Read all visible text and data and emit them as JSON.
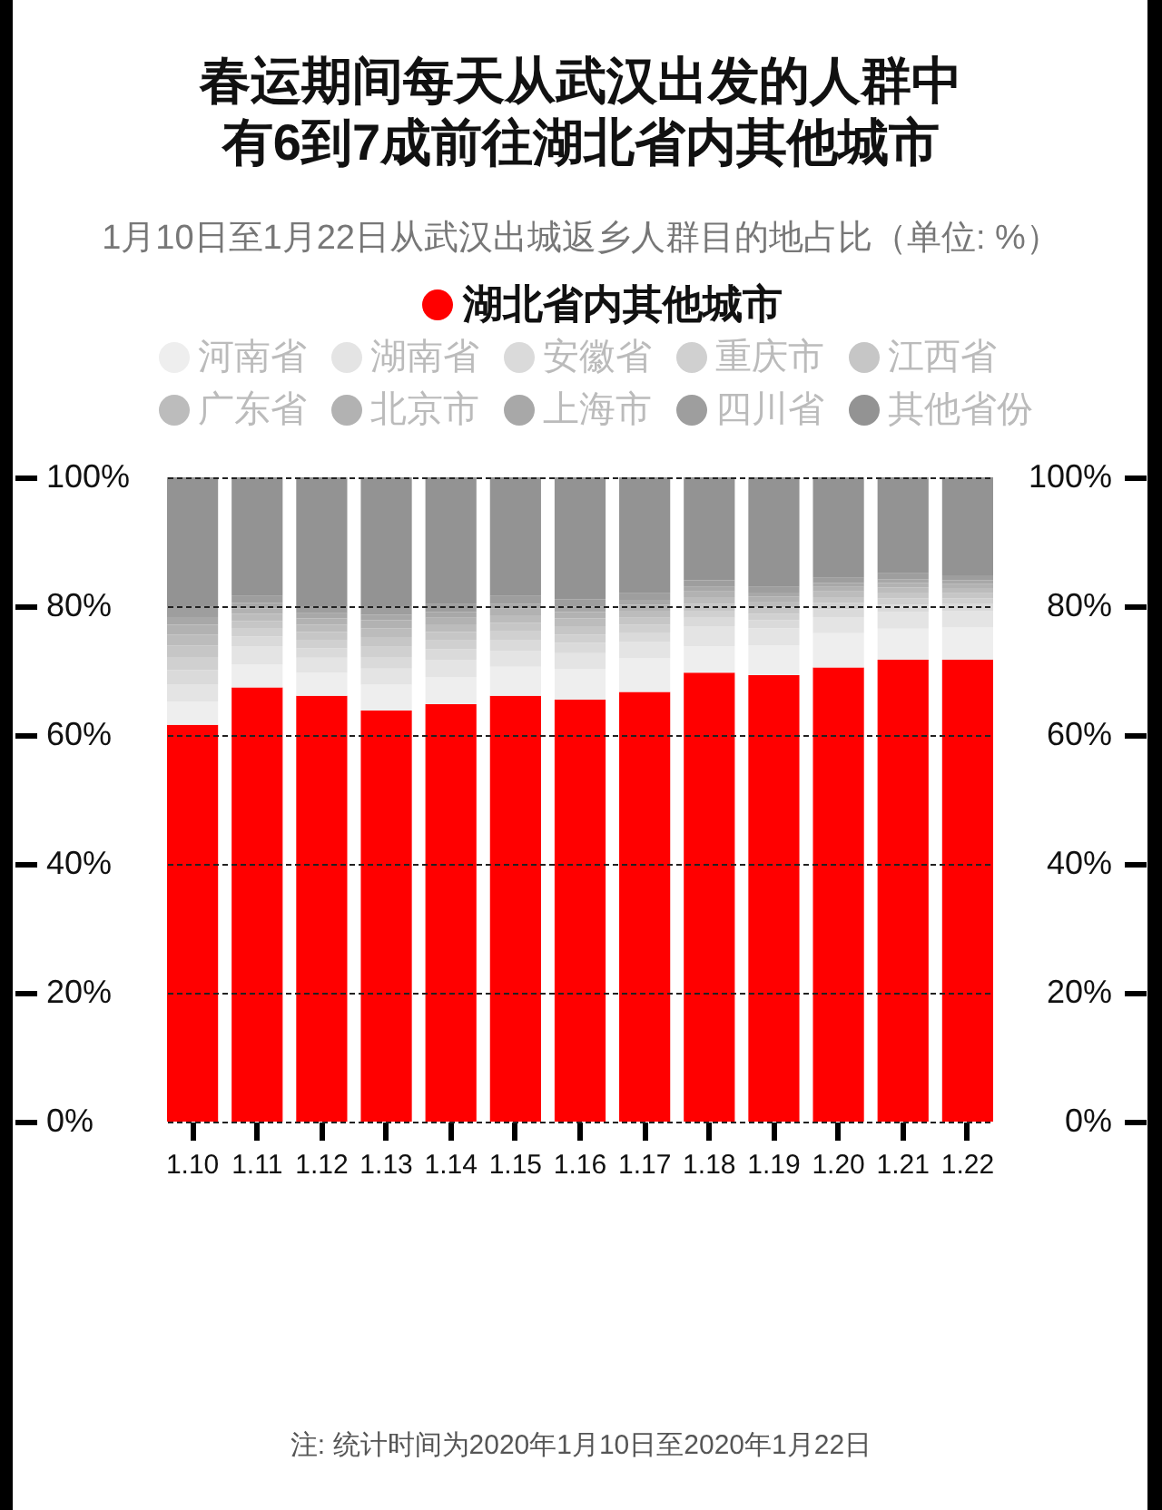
{
  "chart_data": {
    "type": "bar",
    "title": "春运期间每天从武汉出发的人群中有6到7成前往湖北省内其他城市",
    "subtitle": "1月10日至1月22日从武汉出城返乡人群目的地占比（单位: %）",
    "categories": [
      "1.10",
      "1.11",
      "1.12",
      "1.13",
      "1.14",
      "1.15",
      "1.16",
      "1.17",
      "1.18",
      "1.19",
      "1.20",
      "1.21",
      "1.22"
    ],
    "series": [
      {
        "name": "湖北省内其他城市",
        "color": "#ff0000",
        "values": [
          61.6,
          67.4,
          66.1,
          63.8,
          64.8,
          66.1,
          65.5,
          66.7,
          69.7,
          69.3,
          70.5,
          71.7,
          71.7
        ]
      },
      {
        "name": "河南省",
        "color": "#eeeeee",
        "values": [
          3.6,
          3.6,
          3.6,
          4.0,
          4.2,
          4.5,
          4.7,
          5.2,
          4.1,
          4.6,
          5.3,
          4.8,
          5.0
        ]
      },
      {
        "name": "湖南省",
        "color": "#e4e4e4",
        "values": [
          2.6,
          2.8,
          2.3,
          2.5,
          2.7,
          2.5,
          2.5,
          2.6,
          3.1,
          2.7,
          2.5,
          2.6,
          2.6
        ]
      },
      {
        "name": "安徽省",
        "color": "#dadada",
        "values": [
          2.3,
          1.5,
          1.5,
          1.8,
          1.6,
          1.6,
          1.6,
          1.4,
          1.3,
          1.2,
          1.2,
          1.1,
          1.0
        ]
      },
      {
        "name": "重庆市",
        "color": "#d0d0d0",
        "values": [
          2.0,
          1.2,
          1.3,
          1.6,
          1.4,
          1.4,
          1.3,
          1.2,
          1.1,
          1.0,
          1.0,
          1.0,
          0.9
        ]
      },
      {
        "name": "江西省",
        "color": "#c6c6c6",
        "values": [
          1.8,
          1.2,
          1.2,
          1.5,
          1.3,
          1.3,
          1.3,
          1.1,
          1.1,
          1.0,
          0.9,
          0.9,
          0.8
        ]
      },
      {
        "name": "广东省",
        "color": "#bcbcbc",
        "values": [
          1.7,
          1.1,
          1.1,
          1.4,
          1.2,
          1.2,
          1.2,
          1.1,
          1.0,
          0.9,
          0.9,
          0.8,
          0.8
        ]
      },
      {
        "name": "北京市",
        "color": "#b2b2b2",
        "values": [
          1.5,
          0.9,
          1.0,
          1.2,
          1.0,
          1.0,
          1.0,
          0.9,
          0.9,
          0.8,
          0.7,
          0.7,
          0.7
        ]
      },
      {
        "name": "上海市",
        "color": "#a8a8a8",
        "values": [
          1.2,
          0.8,
          0.8,
          0.9,
          0.9,
          0.8,
          0.8,
          0.8,
          0.7,
          0.6,
          0.6,
          0.6,
          0.5
        ]
      },
      {
        "name": "四川省",
        "color": "#9e9e9e",
        "values": [
          1.7,
          1.1,
          1.1,
          1.3,
          1.2,
          1.2,
          1.2,
          1.0,
          1.0,
          0.9,
          0.8,
          0.9,
          0.8
        ]
      },
      {
        "name": "其他省份",
        "color": "#939393",
        "values": [
          20.0,
          18.4,
          20.0,
          20.0,
          19.7,
          18.4,
          18.9,
          18.0,
          16.0,
          17.0,
          15.6,
          14.9,
          15.2
        ]
      }
    ],
    "stacked": true,
    "ylim": [
      0,
      100
    ],
    "yticks": [
      {
        "value": 0,
        "label": "0%"
      },
      {
        "value": 20,
        "label": "20%"
      },
      {
        "value": 40,
        "label": "40%"
      },
      {
        "value": 60,
        "label": "60%"
      },
      {
        "value": 80,
        "label": "80%"
      },
      {
        "value": 100,
        "label": "100%"
      }
    ],
    "y2lim": [
      0,
      100
    ],
    "y2ticks": [
      {
        "value": 0,
        "label": "0%"
      },
      {
        "value": 20,
        "label": "20%"
      },
      {
        "value": 40,
        "label": "40%"
      },
      {
        "value": 60,
        "label": "60%"
      },
      {
        "value": 80,
        "label": "80%"
      },
      {
        "value": 100,
        "label": "100%"
      }
    ],
    "grid": "y",
    "legend": "top",
    "annotations": [
      "注: 统计时间为2020年1月10日至2020年1月22日"
    ]
  }
}
